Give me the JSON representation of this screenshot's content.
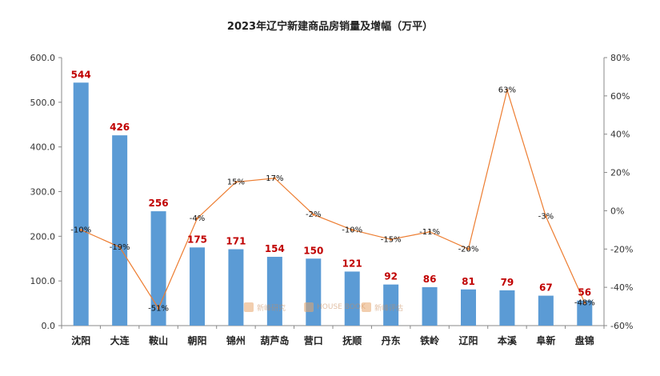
{
  "chart_data": {
    "type": "bar+line",
    "title": "2023年辽宁新建商品房销量及增幅（万平）",
    "categories": [
      "沈阳",
      "大连",
      "鞍山",
      "朝阳",
      "锦州",
      "葫芦岛",
      "营口",
      "抚顺",
      "丹东",
      "铁岭",
      "辽阳",
      "本溪",
      "阜新",
      "盘锦"
    ],
    "series": [
      {
        "type": "bar",
        "axis": "left",
        "color": "#5b9bd5",
        "label_color": "#c00000",
        "values": [
          544,
          426,
          256,
          175,
          171,
          154,
          150,
          121,
          92,
          86,
          81,
          79,
          67,
          56
        ],
        "labels": [
          "544",
          "426",
          "256",
          "175",
          "171",
          "154",
          "150",
          "121",
          "92",
          "86",
          "81",
          "79",
          "67",
          "56"
        ]
      },
      {
        "type": "line",
        "axis": "right",
        "color": "#ed7d31",
        "values": [
          -10,
          -19,
          -51,
          -4,
          15,
          17,
          -2,
          -10,
          -15,
          -11,
          -20,
          63,
          -3,
          -48
        ],
        "labels": [
          "-10%",
          "-19%",
          "-51%",
          "-4%",
          "15%",
          "17%",
          "-2%",
          "-10%",
          "-15%",
          "-11%",
          "-20%",
          "63%",
          "-3%",
          "-48%"
        ]
      }
    ],
    "y_left": {
      "ylim": [
        0,
        600
      ],
      "ticks": [
        "0.0",
        "100.0",
        "200.0",
        "300.0",
        "400.0",
        "500.0",
        "600.0"
      ]
    },
    "y_right": {
      "ylim": [
        -60,
        80
      ],
      "ticks": [
        "-60%",
        "-40%",
        "-20%",
        "0%",
        "20%",
        "40%",
        "60%",
        "80%"
      ]
    },
    "grid": false,
    "legend": "none"
  },
  "watermark": {
    "logo1": "新峰研究",
    "logo2": "HOUSE BOOK",
    "logo3": "新峰评估"
  }
}
